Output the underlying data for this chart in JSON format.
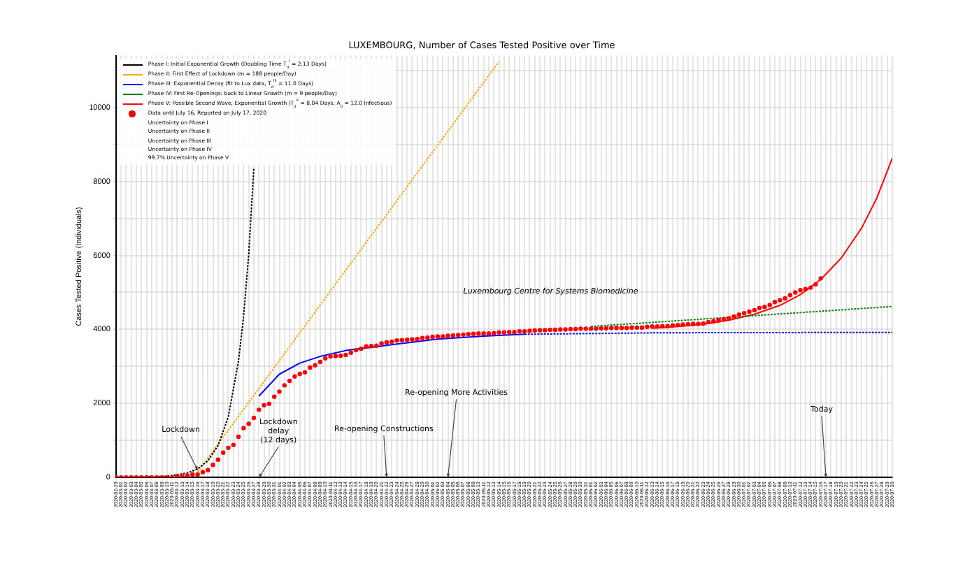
{
  "chart_data": {
    "type": "line",
    "title": "LUXEMBOURG, Number of Cases Tested Positive over Time",
    "ylabel": "Cases Tested Positive (Individuals)",
    "xlim": [
      "2020-02-29",
      "2020-07-30"
    ],
    "ylim": [
      0,
      11400
    ],
    "yticks": [
      0,
      {
        "value": 1000,
        "label": null
      },
      2000,
      {
        "value": 3000,
        "label": null
      },
      4000,
      {
        "value": 5000,
        "label": null
      },
      6000,
      {
        "value": 7000,
        "label": null
      },
      8000,
      {
        "value": 9000,
        "label": null
      },
      10000,
      {
        "value": 11000,
        "label": null
      }
    ],
    "xticks": [
      "2020-02-29",
      "2020-03-01",
      "2020-03-02",
      "2020-03-03",
      "2020-03-04",
      "2020-03-05",
      "2020-03-06",
      "2020-03-07",
      "2020-03-08",
      "2020-03-09",
      "2020-03-10",
      "2020-03-11",
      "2020-03-12",
      "2020-03-13",
      "2020-03-14",
      "2020-03-15",
      "2020-03-16",
      "2020-03-17",
      "2020-03-18",
      "2020-03-19",
      "2020-03-20",
      "2020-03-21",
      "2020-03-22",
      "2020-03-23",
      "2020-03-24",
      "2020-03-25",
      "2020-03-26",
      "2020-03-27",
      "2020-03-28",
      "2020-03-29",
      "2020-03-30",
      "2020-03-31",
      "2020-04-01",
      "2020-04-02",
      "2020-04-03",
      "2020-04-04",
      "2020-04-05",
      "2020-04-06",
      "2020-04-07",
      "2020-04-08",
      "2020-04-09",
      "2020-04-10",
      "2020-04-11",
      "2020-04-12",
      "2020-04-13",
      "2020-04-14",
      "2020-04-15",
      "2020-04-16",
      "2020-04-17",
      "2020-04-18",
      "2020-04-19",
      "2020-04-20",
      "2020-04-21",
      "2020-04-22",
      "2020-04-23",
      "2020-04-24",
      "2020-04-25",
      "2020-04-26",
      "2020-04-27",
      "2020-04-28",
      "2020-04-29",
      "2020-04-30",
      "2020-05-01",
      "2020-05-02",
      "2020-05-03",
      "2020-05-04",
      "2020-05-05",
      "2020-05-06",
      "2020-05-07",
      "2020-05-08",
      "2020-05-09",
      "2020-05-10",
      "2020-05-11",
      "2020-05-12",
      "2020-05-13",
      "2020-05-14",
      "2020-05-15",
      "2020-05-16",
      "2020-05-17",
      "2020-05-18",
      "2020-05-19",
      "2020-05-20",
      "2020-05-21",
      "2020-05-22",
      "2020-05-23",
      "2020-05-24",
      "2020-05-25",
      "2020-05-26",
      "2020-05-27",
      "2020-05-28",
      "2020-05-29",
      "2020-05-30",
      "2020-05-31",
      "2020-06-01",
      "2020-06-02",
      "2020-06-03",
      "2020-06-04",
      "2020-06-05",
      "2020-06-06",
      "2020-06-07",
      "2020-06-08",
      "2020-06-09",
      "2020-06-10",
      "2020-06-11",
      "2020-06-12",
      "2020-06-13",
      "2020-06-14",
      "2020-06-15",
      "2020-06-16",
      "2020-06-17",
      "2020-06-18",
      "2020-06-19",
      "2020-06-20",
      "2020-06-21",
      "2020-06-22",
      "2020-06-23",
      "2020-06-24",
      "2020-06-25",
      "2020-06-26",
      "2020-06-27",
      "2020-06-28",
      "2020-06-29",
      "2020-06-30",
      "2020-07-01",
      "2020-07-02",
      "2020-07-03",
      "2020-07-04",
      "2020-07-05",
      "2020-07-06",
      "2020-07-07",
      "2020-07-08",
      "2020-07-09",
      "2020-07-10",
      "2020-07-11",
      "2020-07-12",
      "2020-07-13",
      "2020-07-14",
      "2020-07-15",
      "2020-07-16",
      "2020-07-17",
      "2020-07-18",
      "2020-07-19",
      "2020-07-20",
      "2020-07-21",
      "2020-07-22",
      "2020-07-23",
      "2020-07-24",
      "2020-07-25",
      "2020-07-26",
      "2020-07-27",
      "2020-07-28",
      "2020-07-29",
      "2020-07-30"
    ],
    "x": [
      "2020-02-29",
      "2020-03-01",
      "2020-03-02",
      "2020-03-03",
      "2020-03-04",
      "2020-03-05",
      "2020-03-06",
      "2020-03-07",
      "2020-03-08",
      "2020-03-09",
      "2020-03-10",
      "2020-03-11",
      "2020-03-12",
      "2020-03-13",
      "2020-03-14",
      "2020-03-15",
      "2020-03-16",
      "2020-03-17",
      "2020-03-18",
      "2020-03-19",
      "2020-03-20",
      "2020-03-21",
      "2020-03-22",
      "2020-03-23",
      "2020-03-24",
      "2020-03-25",
      "2020-03-26",
      "2020-03-27",
      "2020-03-28",
      "2020-03-29",
      "2020-03-30",
      "2020-03-31",
      "2020-04-01",
      "2020-04-02",
      "2020-04-03",
      "2020-04-04",
      "2020-04-05",
      "2020-04-06",
      "2020-04-07",
      "2020-04-08",
      "2020-04-09",
      "2020-04-10",
      "2020-04-11",
      "2020-04-12",
      "2020-04-13",
      "2020-04-14",
      "2020-04-15",
      "2020-04-16",
      "2020-04-17",
      "2020-04-18",
      "2020-04-19",
      "2020-04-20",
      "2020-04-21",
      "2020-04-22",
      "2020-04-23",
      "2020-04-24",
      "2020-04-25",
      "2020-04-26",
      "2020-04-27",
      "2020-04-28",
      "2020-04-29",
      "2020-04-30",
      "2020-05-01",
      "2020-05-02",
      "2020-05-03",
      "2020-05-04",
      "2020-05-05",
      "2020-05-06",
      "2020-05-07",
      "2020-05-08",
      "2020-05-09",
      "2020-05-10",
      "2020-05-11",
      "2020-05-12",
      "2020-05-13",
      "2020-05-14",
      "2020-05-15",
      "2020-05-16",
      "2020-05-17",
      "2020-05-18",
      "2020-05-19",
      "2020-05-20",
      "2020-05-21",
      "2020-05-22",
      "2020-05-23",
      "2020-05-24",
      "2020-05-25",
      "2020-05-26",
      "2020-05-27",
      "2020-05-28",
      "2020-05-29",
      "2020-05-30",
      "2020-05-31",
      "2020-06-01",
      "2020-06-02",
      "2020-06-03",
      "2020-06-04",
      "2020-06-05",
      "2020-06-06",
      "2020-06-07",
      "2020-06-08",
      "2020-06-09",
      "2020-06-10",
      "2020-06-11",
      "2020-06-12",
      "2020-06-13",
      "2020-06-14",
      "2020-06-15",
      "2020-06-16",
      "2020-06-17",
      "2020-06-18",
      "2020-06-19",
      "2020-06-20",
      "2020-06-21",
      "2020-06-22",
      "2020-06-23",
      "2020-06-24",
      "2020-06-25",
      "2020-06-26",
      "2020-06-27",
      "2020-06-28",
      "2020-06-29",
      "2020-06-30",
      "2020-07-01",
      "2020-07-02",
      "2020-07-03",
      "2020-07-04",
      "2020-07-05",
      "2020-07-06",
      "2020-07-07",
      "2020-07-08",
      "2020-07-09",
      "2020-07-10",
      "2020-07-11",
      "2020-07-12",
      "2020-07-13",
      "2020-07-14",
      "2020-07-15",
      "2020-07-16"
    ],
    "series": [
      {
        "name": "Phase I: Initial Exponential Growth (Doubling Time T$_{d}$$^{I}$ = 2.13 Days)",
        "color": "#000000",
        "line_style": "dotted",
        "marker": "none",
        "x": [
          "2020-02-29",
          "2020-03-05",
          "2020-03-10",
          "2020-03-14",
          "2020-03-16",
          "2020-03-18",
          "2020-03-20",
          "2020-03-22",
          "2020-03-24",
          "2020-03-25",
          "2020-03-26",
          "2020-03-27"
        ],
        "values": [
          0,
          10,
          30,
          120,
          230,
          450,
          860,
          1640,
          3150,
          4360,
          6040,
          8360
        ]
      },
      {
        "name": "Phase II: First Effect of Lockdown (m = 188 people/Day)",
        "color": "#ffa500",
        "line_style": "dotted",
        "marker": "none",
        "x": [
          "2020-03-16",
          "2020-05-14"
        ],
        "values": [
          150,
          11240
        ]
      },
      {
        "name": "Phase III: Exponential Decay (fit to Lux data, T$_{d}$$^{III}$ = 11.0 Days)",
        "color": "#0000ff",
        "line_style": "solid",
        "marker": "none",
        "x": [
          "2020-03-28",
          "2020-04-01",
          "2020-04-05",
          "2020-04-09",
          "2020-04-14",
          "2020-04-23",
          "2020-05-02",
          "2020-05-11",
          "2020-05-19"
        ],
        "values": [
          2200,
          2790,
          3090,
          3270,
          3430,
          3590,
          3740,
          3820,
          3870
        ]
      },
      {
        "color": "#0000ff",
        "line_style": "dotted",
        "marker": "none",
        "x": [
          "2020-05-19",
          "2020-06-15",
          "2020-07-30"
        ],
        "values": [
          3870,
          3910,
          3920
        ]
      },
      {
        "name": "Phase IV: First Re-Openings: back to Linear Growth (m = 9 people/Day)",
        "color": "#008000",
        "line_style": "dotted",
        "marker": "none",
        "x": [
          "2020-06-01",
          "2020-07-30"
        ],
        "values": [
          4080,
          4620
        ]
      },
      {
        "name": "Phase V: Possible Second Wave, Exponential Growth (T$_{d}$$^{V}$ = 8.04 Days, A$_{0}$ = 12.0 Infectious)",
        "color": "#ff0000",
        "line_style": "solid",
        "marker": "none",
        "x": [
          "2020-06-13",
          "2020-06-18",
          "2020-06-23",
          "2020-06-28",
          "2020-07-03",
          "2020-07-08",
          "2020-07-12",
          "2020-07-16",
          "2020-07-20",
          "2020-07-24",
          "2020-07-27",
          "2020-07-30"
        ],
        "values": [
          4030,
          4080,
          4140,
          4250,
          4410,
          4650,
          4940,
          5350,
          5930,
          6740,
          7560,
          8630
        ]
      },
      {
        "name": "Data until July 16, Reported on July 17, 2020",
        "type": "scatter",
        "color": "#ff0000",
        "marker": "circle",
        "values": [
          0,
          0,
          0,
          0,
          0,
          0,
          0,
          0,
          0,
          0,
          0,
          0,
          30,
          30,
          50,
          80,
          80,
          140,
          200,
          340,
          480,
          670,
          800,
          880,
          1100,
          1330,
          1450,
          1610,
          1830,
          1950,
          1990,
          2180,
          2320,
          2490,
          2610,
          2730,
          2800,
          2840,
          2970,
          3030,
          3120,
          3220,
          3270,
          3280,
          3290,
          3310,
          3370,
          3440,
          3480,
          3540,
          3550,
          3560,
          3620,
          3650,
          3670,
          3700,
          3710,
          3720,
          3730,
          3740,
          3770,
          3780,
          3800,
          3810,
          3810,
          3830,
          3840,
          3850,
          3860,
          3870,
          3880,
          3890,
          3890,
          3890,
          3900,
          3920,
          3920,
          3930,
          3930,
          3950,
          3950,
          3960,
          3970,
          3980,
          3980,
          3990,
          3990,
          4000,
          4000,
          4010,
          4010,
          4020,
          4020,
          4020,
          4020,
          4030,
          4030,
          4040,
          4040,
          4040,
          4040,
          4050,
          4050,
          4050,
          4070,
          4080,
          4080,
          4090,
          4090,
          4110,
          4120,
          4130,
          4140,
          4150,
          4150,
          4160,
          4200,
          4220,
          4250,
          4280,
          4300,
          4350,
          4400,
          4440,
          4480,
          4520,
          4580,
          4610,
          4660,
          4740,
          4790,
          4840,
          4930,
          5000,
          5060,
          5090,
          5130,
          5220,
          5380
        ]
      }
    ],
    "annotations": [
      {
        "text": "Lockdown",
        "x": "2020-03-16",
        "y": 200
      },
      {
        "text": "Lockdown\ndelay\n(12 days)",
        "x": "2020-03-28",
        "y": 0
      },
      {
        "text": "Re-opening Constructions",
        "x": "2020-04-22",
        "y": 0
      },
      {
        "text": "Re-opening More Activities",
        "x": "2020-05-04",
        "y": 0
      },
      {
        "text": "Today",
        "x": "2020-07-17",
        "y": 0
      },
      "Uncertainty on Phase I",
      "Uncertainty on Phase II",
      "Uncertainty on Phase III",
      "Uncertainty on Phase IV",
      "99.7% Uncertainty on Phase V",
      "Luxembourg Centre for Systems Biomedicine"
    ],
    "grid": true,
    "legend": "top left"
  }
}
